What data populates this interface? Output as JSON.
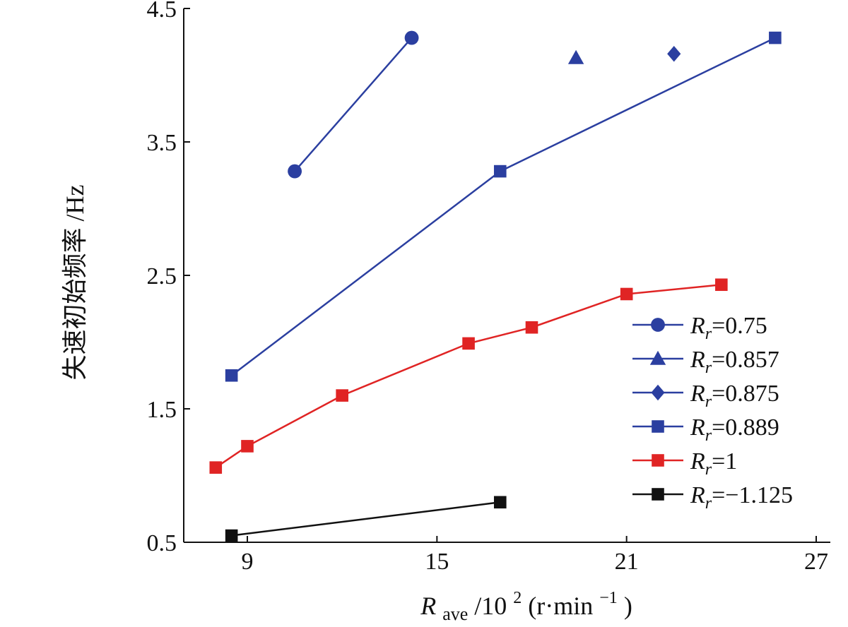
{
  "chart_data": {
    "type": "line",
    "title": "",
    "xlabel": "R_ave/10^2(r·min^-1)",
    "xlabel_parts": {
      "var": "R",
      "sub": "ave",
      "mid": "/10",
      "sup": "2",
      "unit_open": "(r·min",
      "unit_sup": "−1",
      "unit_close": ")"
    },
    "ylabel": "失速初始频率 /Hz",
    "xlim": [
      7,
      28
    ],
    "ylim": [
      0.5,
      4.5
    ],
    "xticks": [
      9,
      15,
      21,
      27
    ],
    "yticks": [
      0.5,
      1.5,
      2.5,
      3.5,
      4.5
    ],
    "ytick_labels": [
      "0.5",
      "1.5",
      "2.5",
      "3.5",
      "4.5"
    ],
    "legend_position": "right-middle",
    "series": [
      {
        "name": "Rr=0.75",
        "label_var": "R",
        "label_sub": "r",
        "label_value": "=0.75",
        "color": "#2b3fa0",
        "marker": "circle",
        "x": [
          10.5,
          14.2
        ],
        "y": [
          3.28,
          4.28
        ]
      },
      {
        "name": "Rr=0.857",
        "label_var": "R",
        "label_sub": "r",
        "label_value": "=0.857",
        "color": "#2b3fa0",
        "marker": "triangle",
        "x": [
          19.4
        ],
        "y": [
          4.13
        ]
      },
      {
        "name": "Rr=0.875",
        "label_var": "R",
        "label_sub": "r",
        "label_value": "=0.875",
        "color": "#2b3fa0",
        "marker": "diamond",
        "x": [
          22.5
        ],
        "y": [
          4.16
        ]
      },
      {
        "name": "Rr=0.889",
        "label_var": "R",
        "label_sub": "r",
        "label_value": "=0.889",
        "color": "#2b3fa0",
        "marker": "square",
        "x": [
          8.5,
          17.0,
          25.7
        ],
        "y": [
          1.75,
          3.28,
          4.28
        ]
      },
      {
        "name": "Rr=1",
        "label_var": "R",
        "label_sub": "r",
        "label_value": "=1",
        "color": "#e02424",
        "marker": "square",
        "x": [
          8.0,
          9.0,
          12.0,
          16.0,
          18.0,
          21.0,
          24.0
        ],
        "y": [
          1.06,
          1.22,
          1.6,
          1.99,
          2.11,
          2.36,
          2.43
        ]
      },
      {
        "name": "Rr=-1.125",
        "label_var": "R",
        "label_sub": "r",
        "label_value": "=−1.125",
        "color": "#111111",
        "marker": "square",
        "x": [
          8.5,
          17.0
        ],
        "y": [
          0.55,
          0.8
        ]
      }
    ]
  }
}
